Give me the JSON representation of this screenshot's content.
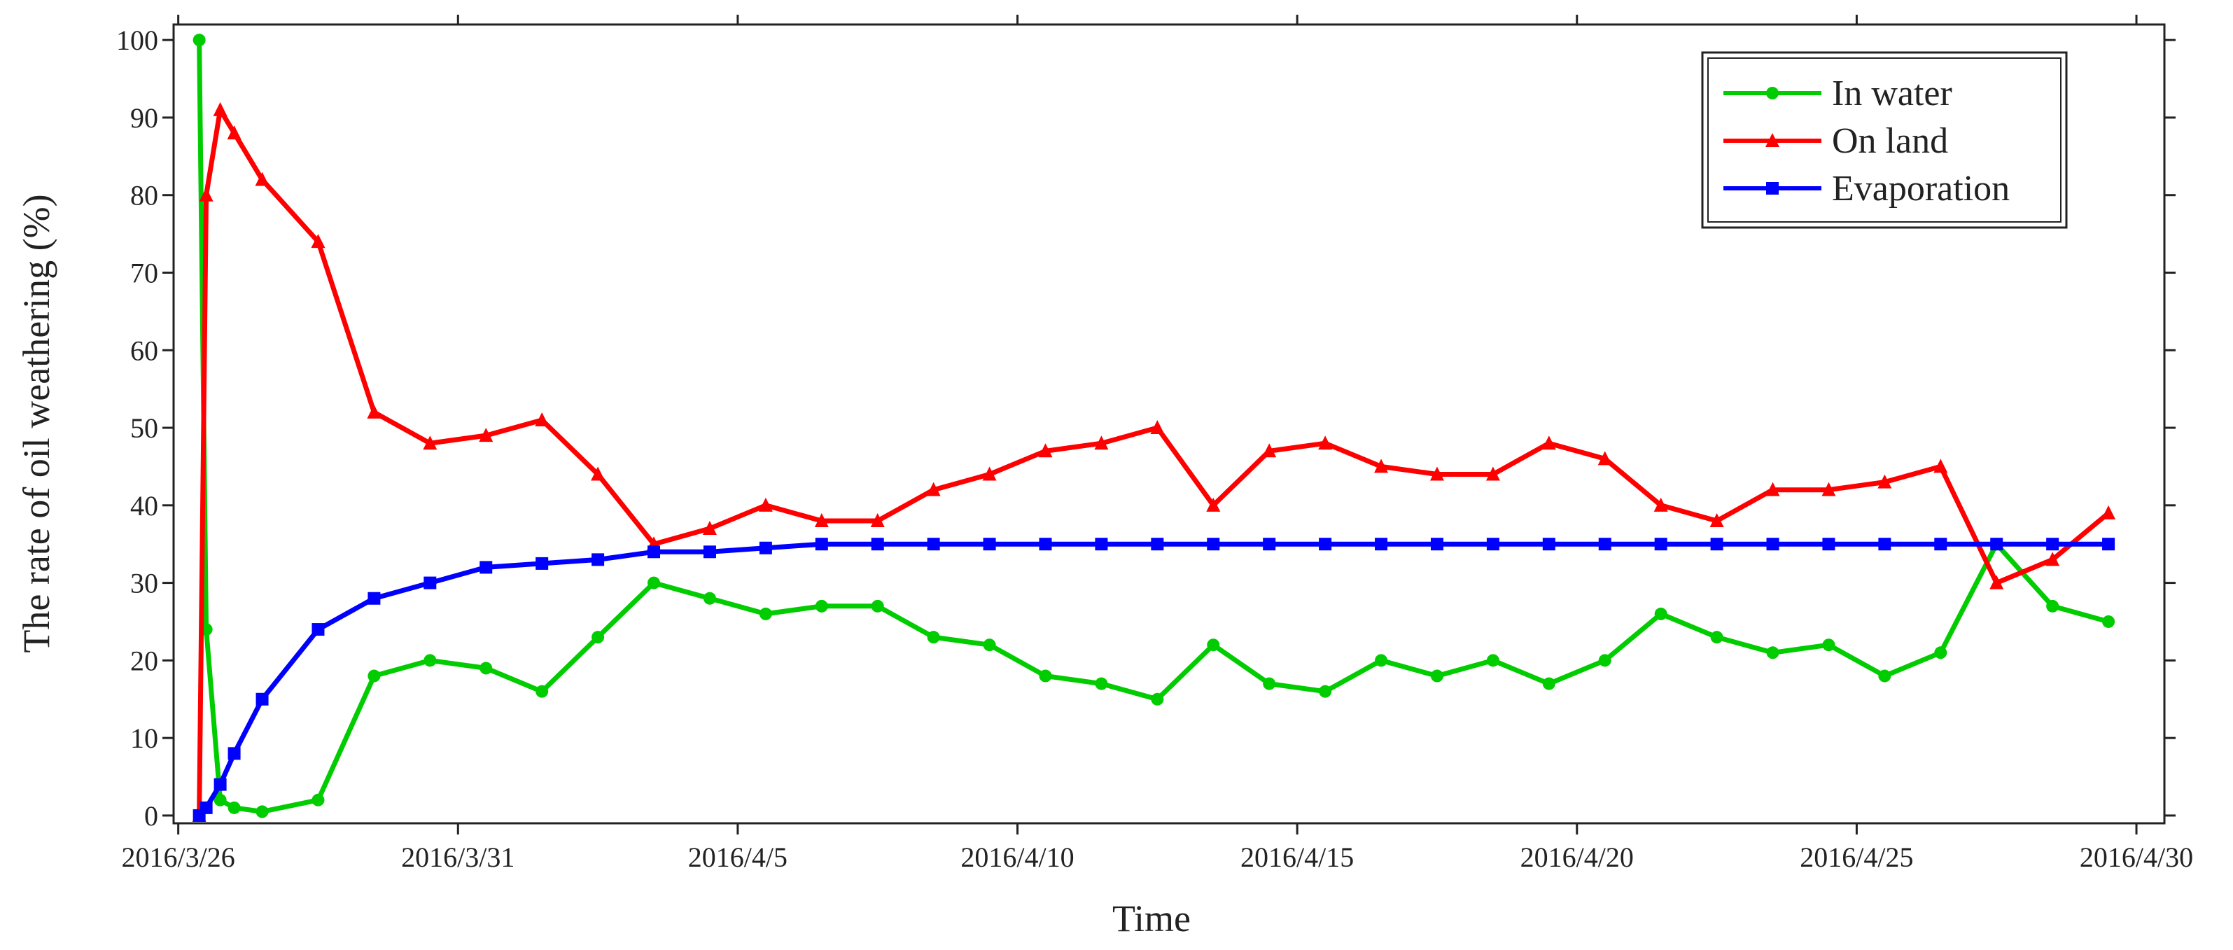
{
  "chart_data": {
    "type": "line",
    "x_label": "Time",
    "y_label": "The rate of oil weathering (%)",
    "x": [
      "2016-03-26T09:00",
      "2016-03-26T12:00",
      "2016-03-26T18:00",
      "2016-03-27T00:00",
      "2016-03-27T12:00",
      "2016-03-28T12:00",
      "2016-03-29T12:00",
      "2016-03-30T12:00",
      "2016-03-31T12:00",
      "2016-04-01T12:00",
      "2016-04-02T12:00",
      "2016-04-03T12:00",
      "2016-04-04T12:00",
      "2016-04-05T12:00",
      "2016-04-06T12:00",
      "2016-04-07T12:00",
      "2016-04-08T12:00",
      "2016-04-09T12:00",
      "2016-04-10T12:00",
      "2016-04-11T12:00",
      "2016-04-12T12:00",
      "2016-04-13T12:00",
      "2016-04-14T12:00",
      "2016-04-15T12:00",
      "2016-04-16T12:00",
      "2016-04-17T12:00",
      "2016-04-18T12:00",
      "2016-04-19T12:00",
      "2016-04-20T12:00",
      "2016-04-21T12:00",
      "2016-04-22T12:00",
      "2016-04-23T12:00",
      "2016-04-24T12:00",
      "2016-04-25T12:00",
      "2016-04-26T12:00",
      "2016-04-27T12:00",
      "2016-04-28T12:00",
      "2016-04-29T12:00"
    ],
    "series": [
      {
        "name": "In water",
        "color": "#00cc00",
        "marker": "circle",
        "values": [
          100,
          24,
          2,
          1,
          0.5,
          2,
          18,
          20,
          19,
          16,
          23,
          30,
          28,
          26,
          27,
          27,
          23,
          22,
          18,
          17,
          15,
          22,
          17,
          16,
          20,
          18,
          20,
          17,
          20,
          26,
          23,
          21,
          22,
          18,
          21,
          35,
          27,
          25
        ]
      },
      {
        "name": "On land",
        "color": "#ff0000",
        "marker": "triangle",
        "values": [
          0,
          80,
          91,
          88,
          82,
          74,
          52,
          48,
          49,
          51,
          44,
          35,
          37,
          40,
          38,
          38,
          42,
          44,
          47,
          48,
          50,
          40,
          47,
          48,
          45,
          44,
          44,
          48,
          46,
          40,
          38,
          42,
          42,
          43,
          45,
          30,
          33,
          39
        ]
      },
      {
        "name": "Evaporation",
        "color": "#0000ff",
        "marker": "square",
        "values": [
          0,
          1,
          4,
          8,
          15,
          24,
          28,
          30,
          32,
          32.5,
          33,
          34,
          34,
          34.5,
          35,
          35,
          35,
          35,
          35,
          35,
          35,
          35,
          35,
          35,
          35,
          35,
          35,
          35,
          35,
          35,
          35,
          35,
          35,
          35,
          35,
          35,
          35,
          35
        ]
      }
    ],
    "xlim": [
      "2016-03-25T22:00",
      "2016-04-30T12:00"
    ],
    "xticks": [
      {
        "value": "2016-03-26",
        "label": "2016/3/26"
      },
      {
        "value": "2016-03-31",
        "label": "2016/3/31"
      },
      {
        "value": "2016-04-05",
        "label": "2016/4/5"
      },
      {
        "value": "2016-04-10",
        "label": "2016/4/10"
      },
      {
        "value": "2016-04-15",
        "label": "2016/4/15"
      },
      {
        "value": "2016-04-20",
        "label": "2016/4/20"
      },
      {
        "value": "2016-04-25",
        "label": "2016/4/25"
      },
      {
        "value": "2016-04-30",
        "label": "2016/4/30"
      }
    ],
    "ylim": [
      -1,
      102
    ],
    "yticks": [
      0,
      10,
      20,
      30,
      40,
      50,
      60,
      70,
      80,
      90,
      100
    ],
    "legend": "upper right"
  }
}
